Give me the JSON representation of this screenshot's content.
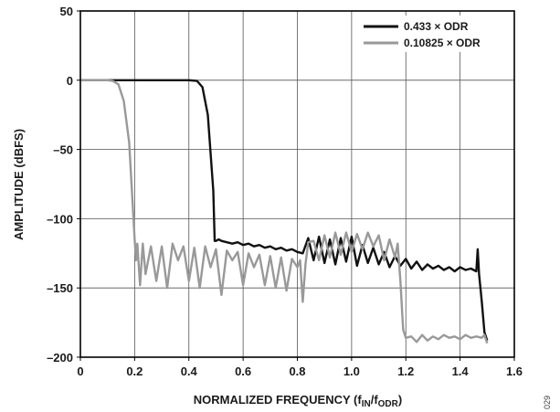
{
  "figure_id": "029",
  "chart_data": {
    "type": "line",
    "title": "",
    "xlabel": "NORMALIZED FREQUENCY (f",
    "xlabel_parts": {
      "main": "NORMALIZED FREQUENCY (f",
      "sub1": "IN",
      "sep": "/f",
      "sub2": "ODR",
      "end": ")"
    },
    "ylabel": "AMPLITUDE (dBFS)",
    "xlim": [
      0,
      1.6
    ],
    "ylim": [
      -200,
      50
    ],
    "xticks": [
      0,
      0.2,
      0.4,
      0.6,
      0.8,
      1.0,
      1.2,
      1.4,
      1.6
    ],
    "xtick_labels": [
      "0",
      "0.2",
      "0.4",
      "0.6",
      "0.8",
      "1.0",
      "1.2",
      "1.4",
      "1.6"
    ],
    "yticks": [
      50,
      0,
      -50,
      -100,
      -150,
      -200
    ],
    "ytick_labels": [
      "50",
      "0",
      "–50",
      "–100",
      "–150",
      "–200"
    ],
    "grid": true,
    "legend_position": "top-right",
    "series": [
      {
        "name": "0.433 × ODR",
        "color": "#111111",
        "x": [
          0,
          0.1,
          0.2,
          0.3,
          0.4,
          0.43,
          0.45,
          0.47,
          0.49,
          0.495,
          0.5,
          0.51,
          0.52,
          0.54,
          0.56,
          0.58,
          0.6,
          0.62,
          0.64,
          0.66,
          0.68,
          0.7,
          0.72,
          0.74,
          0.76,
          0.78,
          0.8,
          0.82,
          0.84,
          0.86,
          0.88,
          0.9,
          0.92,
          0.94,
          0.96,
          0.98,
          1.0,
          1.02,
          1.04,
          1.06,
          1.08,
          1.1,
          1.12,
          1.14,
          1.16,
          1.18,
          1.2,
          1.22,
          1.24,
          1.26,
          1.28,
          1.3,
          1.32,
          1.34,
          1.36,
          1.38,
          1.4,
          1.42,
          1.44,
          1.46,
          1.465,
          1.47,
          1.48,
          1.49,
          1.5
        ],
        "y": [
          0,
          0,
          0,
          0,
          0,
          -0.5,
          -5,
          -25,
          -80,
          -116,
          -116,
          -115,
          -116,
          -117,
          -118,
          -117,
          -119,
          -118,
          -120,
          -119,
          -121,
          -120,
          -122,
          -121,
          -123,
          -122,
          -124,
          -125,
          -114,
          -130,
          -113,
          -132,
          -115,
          -133,
          -114,
          -131,
          -113,
          -134,
          -119,
          -132,
          -121,
          -133,
          -124,
          -135,
          -127,
          -134,
          -129,
          -136,
          -131,
          -137,
          -133,
          -136,
          -134,
          -137,
          -135,
          -138,
          -135,
          -137,
          -136,
          -138,
          -122,
          -140,
          -160,
          -182,
          -188
        ]
      },
      {
        "name": "0.10825 × ODR",
        "color": "#999999",
        "x": [
          0,
          0.1,
          0.12,
          0.14,
          0.16,
          0.18,
          0.19,
          0.2,
          0.205,
          0.21,
          0.22,
          0.23,
          0.24,
          0.26,
          0.28,
          0.3,
          0.32,
          0.34,
          0.36,
          0.38,
          0.4,
          0.42,
          0.44,
          0.46,
          0.48,
          0.5,
          0.52,
          0.54,
          0.56,
          0.58,
          0.6,
          0.62,
          0.64,
          0.66,
          0.68,
          0.7,
          0.72,
          0.74,
          0.76,
          0.78,
          0.8,
          0.81,
          0.82,
          0.83,
          0.84,
          0.86,
          0.88,
          0.9,
          0.92,
          0.94,
          0.96,
          0.98,
          1.0,
          1.02,
          1.04,
          1.06,
          1.08,
          1.1,
          1.12,
          1.14,
          1.16,
          1.17,
          1.18,
          1.19,
          1.2,
          1.22,
          1.24,
          1.26,
          1.28,
          1.3,
          1.32,
          1.34,
          1.36,
          1.38,
          1.4,
          1.42,
          1.44,
          1.46,
          1.48,
          1.49,
          1.5
        ],
        "y": [
          0,
          0,
          -0.5,
          -3,
          -15,
          -45,
          -80,
          -115,
          -130,
          -118,
          -148,
          -118,
          -140,
          -120,
          -145,
          -120,
          -150,
          -118,
          -130,
          -120,
          -145,
          -121,
          -150,
          -120,
          -135,
          -122,
          -155,
          -123,
          -130,
          -124,
          -148,
          -125,
          -135,
          -126,
          -148,
          -127,
          -150,
          -128,
          -152,
          -129,
          -135,
          -130,
          -160,
          -133,
          -117,
          -116,
          -130,
          -112,
          -128,
          -110,
          -126,
          -110,
          -124,
          -111,
          -122,
          -110,
          -120,
          -112,
          -130,
          -115,
          -128,
          -118,
          -145,
          -180,
          -186,
          -185,
          -189,
          -184,
          -188,
          -185,
          -187,
          -184,
          -186,
          -185,
          -187,
          -184,
          -186,
          -185,
          -186,
          -184,
          -190
        ]
      }
    ]
  }
}
